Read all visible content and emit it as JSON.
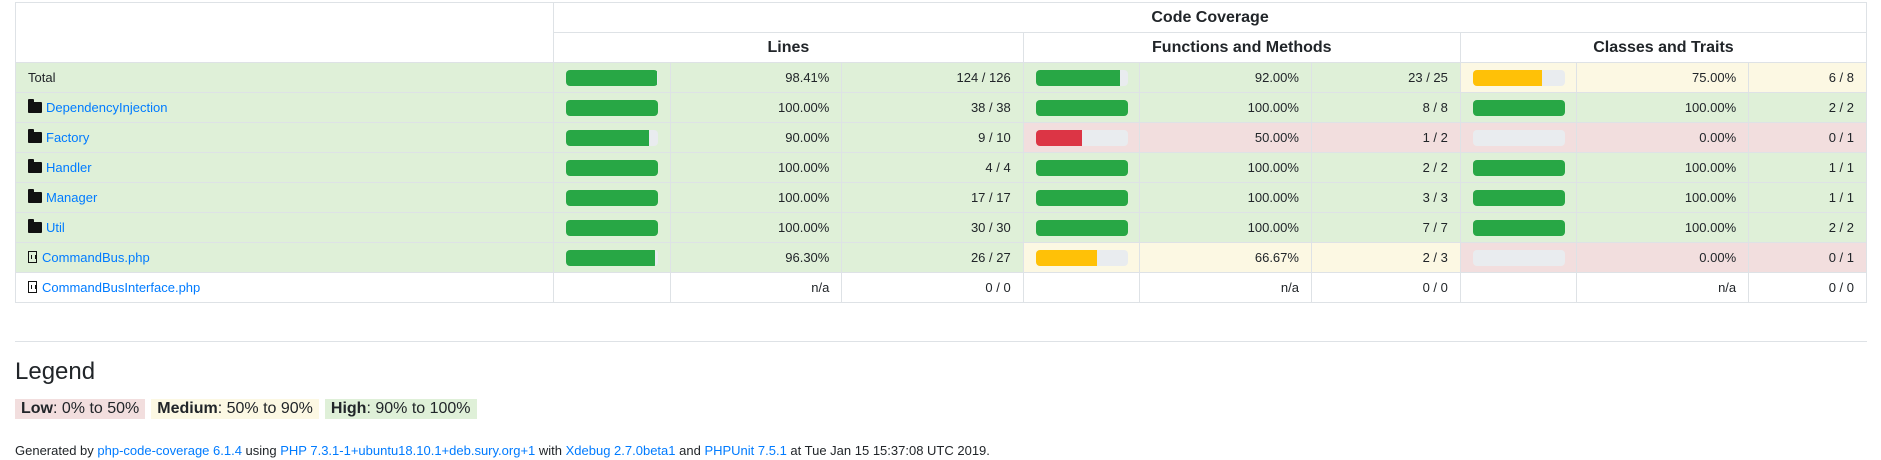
{
  "header": {
    "title": "Code Coverage",
    "groups": [
      "Lines",
      "Functions and Methods",
      "Classes and Traits"
    ]
  },
  "rows": [
    {
      "name": "Total",
      "kind": "total",
      "lines": {
        "pct": "98.41%",
        "count": "124 / 126",
        "level": "success",
        "fill": 98.41
      },
      "functions": {
        "pct": "92.00%",
        "count": "23 / 25",
        "level": "success",
        "fill": 92.0
      },
      "classes": {
        "pct": "75.00%",
        "count": "6 / 8",
        "level": "warning",
        "fill": 75.0
      }
    },
    {
      "name": "DependencyInjection",
      "kind": "folder",
      "lines": {
        "pct": "100.00%",
        "count": "38 / 38",
        "level": "success",
        "fill": 100
      },
      "functions": {
        "pct": "100.00%",
        "count": "8 / 8",
        "level": "success",
        "fill": 100
      },
      "classes": {
        "pct": "100.00%",
        "count": "2 / 2",
        "level": "success",
        "fill": 100
      }
    },
    {
      "name": "Factory",
      "kind": "folder",
      "lines": {
        "pct": "90.00%",
        "count": "9 / 10",
        "level": "success",
        "fill": 90
      },
      "functions": {
        "pct": "50.00%",
        "count": "1 / 2",
        "level": "danger",
        "fill": 50
      },
      "classes": {
        "pct": "0.00%",
        "count": "0 / 1",
        "level": "danger",
        "fill": 0
      }
    },
    {
      "name": "Handler",
      "kind": "folder",
      "lines": {
        "pct": "100.00%",
        "count": "4 / 4",
        "level": "success",
        "fill": 100
      },
      "functions": {
        "pct": "100.00%",
        "count": "2 / 2",
        "level": "success",
        "fill": 100
      },
      "classes": {
        "pct": "100.00%",
        "count": "1 / 1",
        "level": "success",
        "fill": 100
      }
    },
    {
      "name": "Manager",
      "kind": "folder",
      "lines": {
        "pct": "100.00%",
        "count": "17 / 17",
        "level": "success",
        "fill": 100
      },
      "functions": {
        "pct": "100.00%",
        "count": "3 / 3",
        "level": "success",
        "fill": 100
      },
      "classes": {
        "pct": "100.00%",
        "count": "1 / 1",
        "level": "success",
        "fill": 100
      }
    },
    {
      "name": "Util",
      "kind": "folder",
      "lines": {
        "pct": "100.00%",
        "count": "30 / 30",
        "level": "success",
        "fill": 100
      },
      "functions": {
        "pct": "100.00%",
        "count": "7 / 7",
        "level": "success",
        "fill": 100
      },
      "classes": {
        "pct": "100.00%",
        "count": "2 / 2",
        "level": "success",
        "fill": 100
      }
    },
    {
      "name": "CommandBus.php",
      "kind": "file",
      "lines": {
        "pct": "96.30%",
        "count": "26 / 27",
        "level": "success",
        "fill": 96.3
      },
      "functions": {
        "pct": "66.67%",
        "count": "2 / 3",
        "level": "warning",
        "fill": 66.67
      },
      "classes": {
        "pct": "0.00%",
        "count": "0 / 1",
        "level": "danger",
        "fill": 0
      }
    },
    {
      "name": "CommandBusInterface.php",
      "kind": "file",
      "lines": {
        "pct": "n/a",
        "count": "0 / 0",
        "level": "none",
        "fill": null
      },
      "functions": {
        "pct": "n/a",
        "count": "0 / 0",
        "level": "none",
        "fill": null
      },
      "classes": {
        "pct": "n/a",
        "count": "0 / 0",
        "level": "none",
        "fill": null
      }
    }
  ],
  "legend": {
    "title": "Legend",
    "low_label": "Low",
    "low_range": ": 0% to 50%",
    "medium_label": "Medium",
    "medium_range": ": 50% to 90%",
    "high_label": "High",
    "high_range": ": 90% to 100%"
  },
  "footer": {
    "generated_by": "Generated by ",
    "tool": "php-code-coverage 6.1.4",
    "using": " using ",
    "php": "PHP 7.3.1-1+ubuntu18.10.1+deb.sury.org+1",
    "with": " with ",
    "xdebug": "Xdebug 2.7.0beta1",
    "and": " and ",
    "phpunit": "PHPUnit 7.5.1",
    "at": " at Tue Jan 15 15:37:08 UTC 2019."
  },
  "colors": {
    "success_bg": "#dff0d8",
    "warning_bg": "#fcf8e3",
    "danger_bg": "#f2dede",
    "success_bar": "#28a745",
    "warning_bar": "#ffc107",
    "danger_bar": "#dc3545",
    "link": "#007bff"
  }
}
